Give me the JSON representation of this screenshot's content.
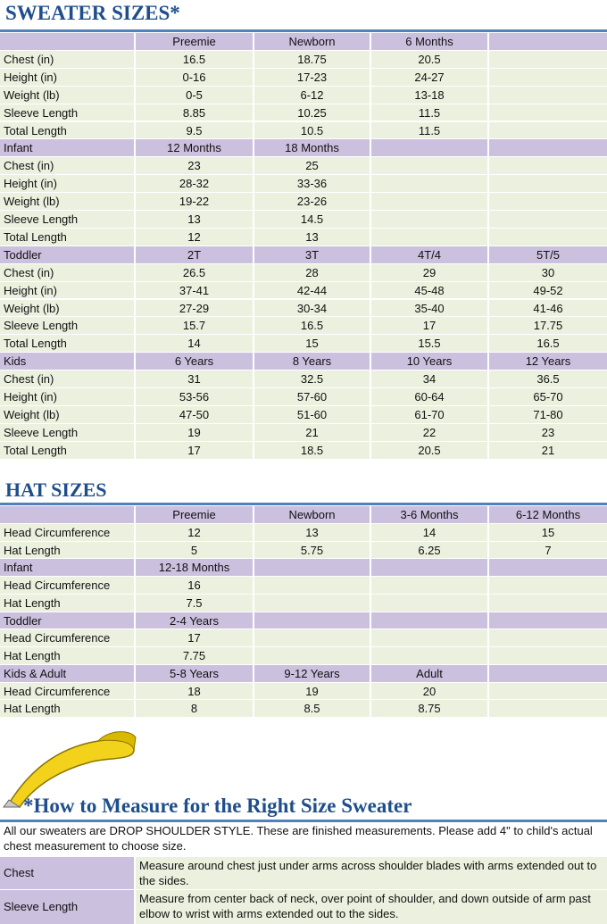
{
  "sweater": {
    "title": "SWEATER SIZES*",
    "sections": [
      {
        "label": null,
        "columns": [
          "Preemie",
          "Newborn",
          "6 Months"
        ],
        "rows": [
          {
            "label": "Chest (in)",
            "values": [
              "16.5",
              "18.75",
              "20.5"
            ]
          },
          {
            "label": "Height (in)",
            "values": [
              "0-16",
              "17-23",
              "24-27"
            ]
          },
          {
            "label": "Weight (lb)",
            "values": [
              "0-5",
              "6-12",
              "13-18"
            ]
          },
          {
            "label": "Sleeve Length",
            "values": [
              "8.85",
              "10.25",
              "11.5"
            ]
          },
          {
            "label": "Total Length",
            "values": [
              "9.5",
              "10.5",
              "11.5"
            ]
          }
        ]
      },
      {
        "label": "Infant",
        "columns": [
          "12 Months",
          "18 Months"
        ],
        "rows": [
          {
            "label": "Chest (in)",
            "values": [
              "23",
              "25"
            ]
          },
          {
            "label": "Height (in)",
            "values": [
              "28-32",
              "33-36"
            ]
          },
          {
            "label": "Weight (lb)",
            "values": [
              "19-22",
              "23-26"
            ]
          },
          {
            "label": "Sleeve Length",
            "values": [
              "13",
              "14.5"
            ]
          },
          {
            "label": "Total Length",
            "values": [
              "12",
              "13"
            ]
          }
        ]
      },
      {
        "label": "Toddler",
        "columns": [
          "2T",
          "3T",
          "4T/4",
          "5T/5"
        ],
        "rows": [
          {
            "label": "Chest (in)",
            "values": [
              "26.5",
              "28",
              "29",
              "30"
            ]
          },
          {
            "label": "Height (in)",
            "values": [
              "37-41",
              "42-44",
              "45-48",
              "49-52"
            ]
          },
          {
            "label": "Weight (lb)",
            "values": [
              "27-29",
              "30-34",
              "35-40",
              "41-46"
            ]
          },
          {
            "label": "Sleeve Length",
            "values": [
              "15.7",
              "16.5",
              "17",
              "17.75"
            ]
          },
          {
            "label": "Total Length",
            "values": [
              "14",
              "15",
              "15.5",
              "16.5"
            ]
          }
        ]
      },
      {
        "label": "Kids",
        "columns": [
          "6 Years",
          "8 Years",
          "10 Years",
          "12 Years"
        ],
        "rows": [
          {
            "label": "Chest (in)",
            "values": [
              "31",
              "32.5",
              "34",
              "36.5"
            ]
          },
          {
            "label": "Height (in)",
            "values": [
              "53-56",
              "57-60",
              "60-64",
              "65-70"
            ]
          },
          {
            "label": "Weight (lb)",
            "values": [
              "47-50",
              "51-60",
              "61-70",
              "71-80"
            ]
          },
          {
            "label": "Sleeve Length",
            "values": [
              "19",
              "21",
              "22",
              "23"
            ]
          },
          {
            "label": "Total Length",
            "values": [
              "17",
              "18.5",
              "20.5",
              "21"
            ]
          }
        ]
      }
    ]
  },
  "hat": {
    "title": "HAT SIZES",
    "sections": [
      {
        "label": null,
        "columns": [
          "Preemie",
          "Newborn",
          "3-6 Months",
          "6-12 Months"
        ],
        "rows": [
          {
            "label": "Head Circumference",
            "values": [
              "12",
              "13",
              "14",
              "15"
            ]
          },
          {
            "label": "Hat Length",
            "values": [
              "5",
              "5.75",
              "6.25",
              "7"
            ]
          }
        ]
      },
      {
        "label": "Infant",
        "columns": [
          "12-18 Months"
        ],
        "rows": [
          {
            "label": "Head Circumference",
            "values": [
              "16"
            ]
          },
          {
            "label": "Hat Length",
            "values": [
              "7.5"
            ]
          }
        ]
      },
      {
        "label": "Toddler",
        "columns": [
          "2-4 Years"
        ],
        "rows": [
          {
            "label": "Head Circumference",
            "values": [
              "17"
            ]
          },
          {
            "label": "Hat Length",
            "values": [
              "7.75"
            ]
          }
        ]
      },
      {
        "label": "Kids & Adult",
        "columns": [
          "5-8 Years",
          "9-12 Years",
          "Adult"
        ],
        "rows": [
          {
            "label": "Head Circumference",
            "values": [
              "18",
              "19",
              "20"
            ]
          },
          {
            "label": "Hat Length",
            "values": [
              "8",
              "8.5",
              "8.75"
            ]
          }
        ]
      }
    ]
  },
  "measure": {
    "title": "*How to Measure for the Right Size Sweater",
    "intro": "All our sweaters are DROP SHOULDER STYLE.  These are finished measurements.  Please add 4\" to child's actual chest measurement to choose size.",
    "items": [
      {
        "label": "Chest",
        "text": "Measure around chest just under arms across shoulder blades with arms extended out to the sides."
      },
      {
        "label": "Sleeve Length",
        "text": "Measure from center back of neck, over point of shoulder, and down outside of arm past elbow to wrist with arms extended out to the sides."
      }
    ]
  }
}
